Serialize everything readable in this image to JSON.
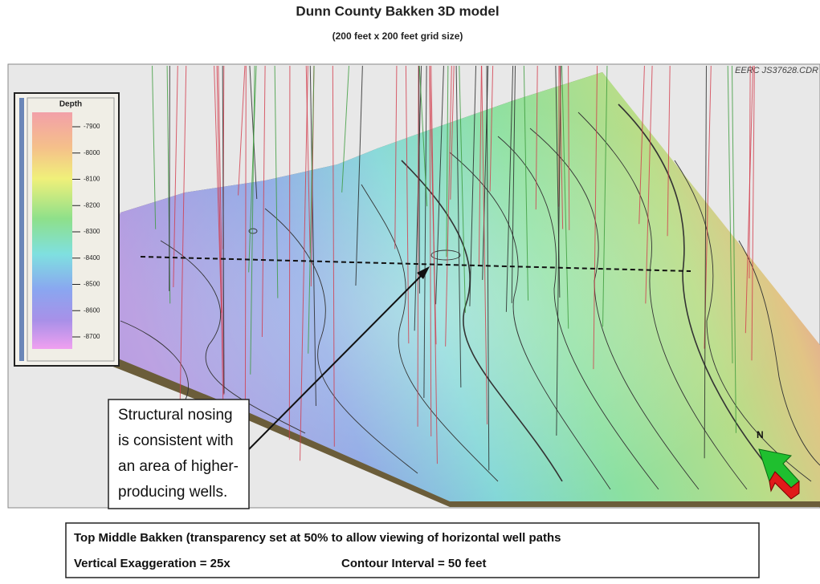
{
  "header": {
    "title": "Dunn County Bakken 3D model",
    "subtitle": "(200 feet x 200 feet grid size)",
    "credit": "EERC JS37628.CDR"
  },
  "legend": {
    "title": "Depth",
    "ticks": [
      "-7900",
      "-8000",
      "-8100",
      "-8200",
      "-8300",
      "-8400",
      "-8500",
      "-8600",
      "-8700"
    ]
  },
  "callout": {
    "lines": [
      "Structural nosing",
      "is consistent with",
      "an area of higher-",
      "producing wells."
    ]
  },
  "compass": {
    "label": "N"
  },
  "caption": {
    "line1": "Top Middle Bakken (transparency set at 50% to allow viewing of horizontal well paths",
    "exaggeration": "Vertical Exaggeration = 25x",
    "contour": "Contour Interval = 50 feet"
  }
}
